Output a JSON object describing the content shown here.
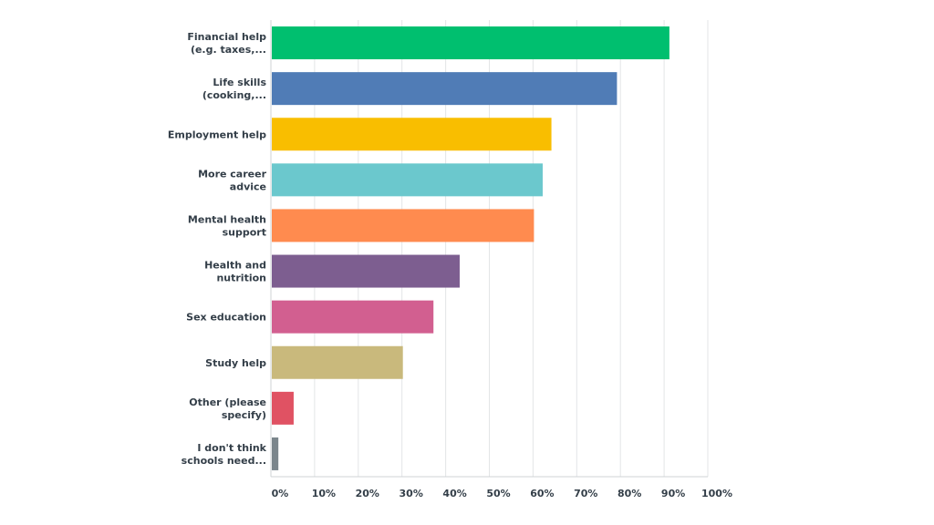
{
  "chart_data": {
    "type": "bar",
    "orientation": "horizontal",
    "title": "",
    "xlabel": "",
    "ylabel": "",
    "xlim": [
      0,
      100
    ],
    "grid": true,
    "categories": [
      [
        "Financial help",
        "(e.g. taxes,..."
      ],
      [
        "Life skills",
        "(cooking,..."
      ],
      [
        "Employment help"
      ],
      [
        "More career",
        "advice"
      ],
      [
        "Mental health",
        "support"
      ],
      [
        "Health and",
        "nutrition"
      ],
      [
        "Sex education"
      ],
      [
        "Study help"
      ],
      [
        "Other (please",
        "specify)"
      ],
      [
        "I don't think",
        "schools need..."
      ]
    ],
    "values": [
      91,
      79,
      64,
      62,
      60,
      43,
      37,
      30,
      5,
      1.5
    ],
    "colors": [
      "#00bf6f",
      "#507cb6",
      "#f9be00",
      "#6bc8cd",
      "#ff8b4f",
      "#7d5e90",
      "#d25f90",
      "#c9b97c",
      "#e05263",
      "#7b868c"
    ],
    "tick_labels": [
      "0%",
      "10%",
      "20%",
      "30%",
      "40%",
      "50%",
      "60%",
      "70%",
      "80%",
      "90%",
      "100%"
    ]
  }
}
